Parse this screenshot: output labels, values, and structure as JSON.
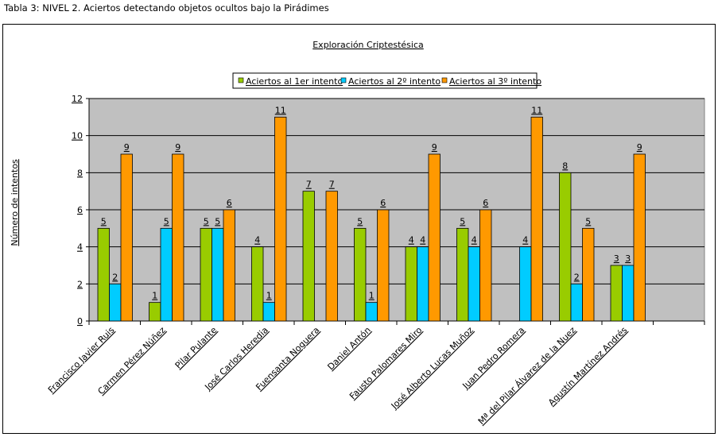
{
  "caption": "Tabla 3: NIVEL 2. Aciertos detectando objetos ocultos bajo la Pirádimes",
  "chart_data": {
    "type": "bar",
    "title": "Exploración Criptestésica",
    "xlabel": "",
    "ylabel": "Número de intentos",
    "ylim": [
      0,
      12
    ],
    "yticks": [
      0,
      2,
      4,
      6,
      8,
      10,
      12
    ],
    "grid": true,
    "legend_position": "top",
    "categories": [
      "Francisco Javier Ruis",
      "Carmen Pérez Núñez",
      "Pilar Pulante",
      "José Carlos Heredia",
      "Fuensanta Noguera",
      "Daniel Antón",
      "Fausto Palomares Miro",
      "José Alberto Lucas Muñoz",
      "Juan Pedro Romera",
      "Mª del Pilar Álvarez de la Nuez",
      "Agustín Martínez Andrés",
      ""
    ],
    "series": [
      {
        "name": "Aciertos al 1er intento",
        "color": "#99cc00",
        "values": [
          5,
          1,
          5,
          4,
          7,
          5,
          4,
          5,
          null,
          8,
          3,
          null
        ]
      },
      {
        "name": "Aciertos al 2º intento",
        "color": "#00ccff",
        "values": [
          2,
          5,
          5,
          1,
          null,
          1,
          4,
          4,
          4,
          2,
          3,
          null
        ]
      },
      {
        "name": "Aciertos al 3º intento",
        "color": "#ff9900",
        "values": [
          9,
          9,
          6,
          11,
          7,
          6,
          9,
          6,
          11,
          5,
          9,
          null
        ]
      }
    ],
    "plot_background": "#c0c0c0"
  }
}
